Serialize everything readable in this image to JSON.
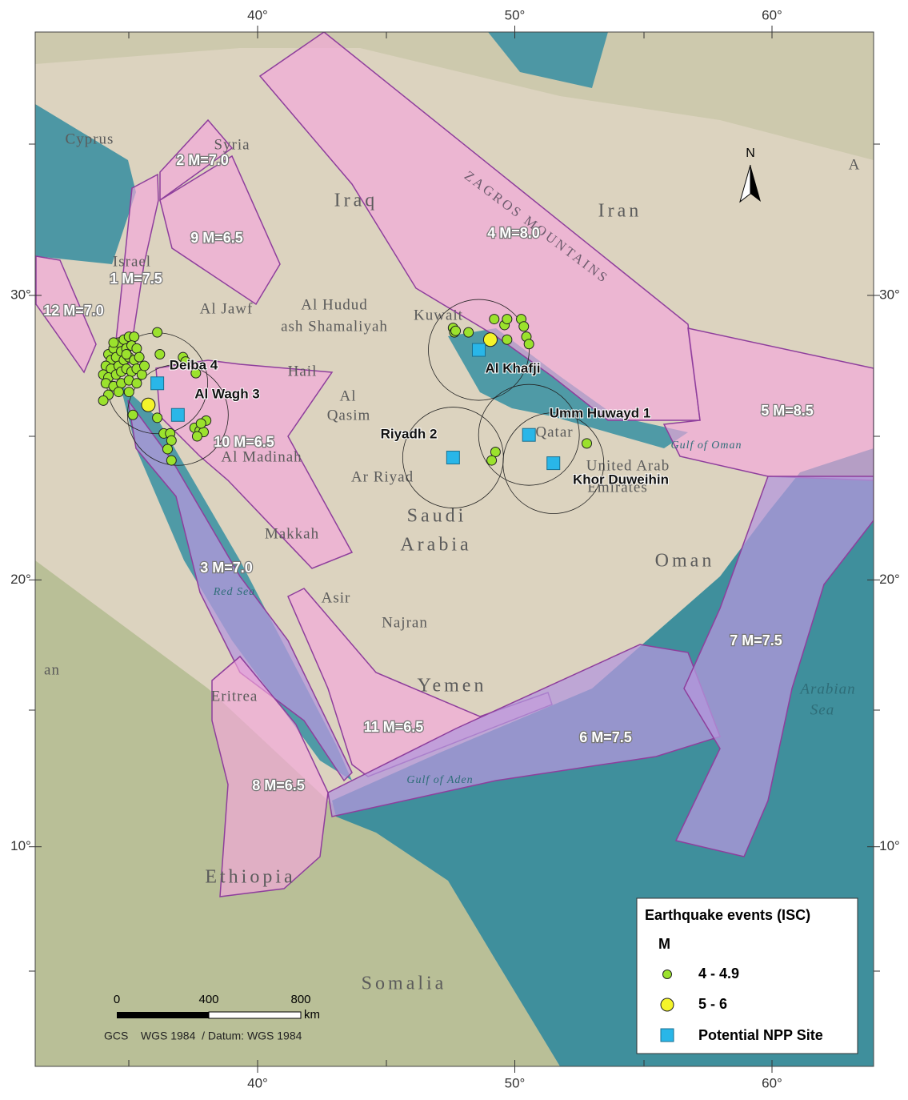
{
  "map": {
    "lon_ticks": [
      {
        "value": 40,
        "label": "40°"
      },
      {
        "value": 50,
        "label": "50°"
      },
      {
        "value": 60,
        "label": "60°"
      }
    ],
    "lat_ticks": [
      {
        "value": 30,
        "label": "30°"
      },
      {
        "value": 20,
        "label": "20°"
      },
      {
        "value": 10,
        "label": "10°"
      }
    ],
    "places": [
      "Cyprus",
      "Syria",
      "Iraq",
      "Iran",
      "Israel",
      "Al Jawf",
      "Al Hudud",
      "ash Shamaliyah",
      "Kuwait",
      "Hail",
      "Al",
      "Qasim",
      "Al Madinah",
      "Ar Riyad",
      "Saudi",
      "Arabia",
      "Makkah",
      "Asir",
      "Najran",
      "Yemen",
      "Eritrea",
      "Ethiopia",
      "Somalia",
      "Oman",
      "United Arab",
      "Emirates",
      "Qatar",
      "Arabian",
      "Sea",
      "Gulf of Oman",
      "Gulf of Aden",
      "ZAGROS MOUNTAINS",
      "Red Sea",
      "an",
      "A"
    ],
    "zones": [
      "1 M=7.5",
      "2 M=7.0",
      "3 M=7.0",
      "4 M=8.0",
      "5 M=8.5",
      "6 M=7.5",
      "7 M=7.5",
      "8 M=6.5",
      "9 M=6.5",
      "10 M=6.5",
      "11 M=6.5",
      "12 M=7.0"
    ],
    "earthquake_groups": [
      {
        "label": "4 - 4.9",
        "color": "#9be22d",
        "points": [
          [
            34.2,
            28.0
          ],
          [
            34.4,
            28.2
          ],
          [
            34.6,
            28.4
          ],
          [
            34.8,
            28.5
          ],
          [
            35.0,
            28.6
          ],
          [
            35.2,
            28.6
          ],
          [
            34.3,
            27.8
          ],
          [
            34.5,
            27.9
          ],
          [
            34.7,
            28.1
          ],
          [
            34.9,
            28.2
          ],
          [
            35.1,
            28.3
          ],
          [
            35.3,
            28.2
          ],
          [
            34.1,
            27.6
          ],
          [
            34.3,
            27.5
          ],
          [
            34.6,
            27.6
          ],
          [
            34.8,
            27.8
          ],
          [
            35.0,
            27.9
          ],
          [
            35.2,
            27.8
          ],
          [
            35.4,
            27.9
          ],
          [
            34.0,
            27.3
          ],
          [
            34.2,
            27.2
          ],
          [
            34.5,
            27.3
          ],
          [
            34.7,
            27.4
          ],
          [
            34.9,
            27.5
          ],
          [
            35.1,
            27.4
          ],
          [
            35.3,
            27.5
          ],
          [
            35.5,
            27.3
          ],
          [
            34.1,
            27.0
          ],
          [
            34.4,
            26.9
          ],
          [
            34.7,
            27.0
          ],
          [
            35.0,
            27.1
          ],
          [
            35.3,
            27.0
          ],
          [
            34.2,
            26.6
          ],
          [
            34.6,
            26.7
          ],
          [
            35.0,
            26.7
          ],
          [
            34.0,
            26.4
          ],
          [
            34.4,
            28.4
          ],
          [
            34.9,
            28.0
          ],
          [
            35.6,
            27.6
          ],
          [
            36.1,
            28.75
          ],
          [
            36.2,
            28.0
          ],
          [
            37.1,
            27.9
          ],
          [
            37.2,
            27.75
          ],
          [
            37.6,
            27.35
          ],
          [
            35.15,
            25.9
          ],
          [
            36.1,
            25.8
          ],
          [
            36.35,
            25.25
          ],
          [
            36.6,
            25.25
          ],
          [
            36.65,
            25.0
          ],
          [
            36.65,
            24.3
          ],
          [
            36.5,
            24.7
          ],
          [
            37.55,
            25.45
          ],
          [
            37.75,
            25.35
          ],
          [
            37.9,
            25.3
          ],
          [
            38.0,
            25.7
          ],
          [
            37.8,
            25.6
          ],
          [
            37.65,
            25.15
          ],
          [
            47.6,
            28.9
          ],
          [
            47.65,
            28.75
          ],
          [
            47.7,
            28.8
          ],
          [
            48.2,
            28.75
          ],
          [
            49.2,
            29.2
          ],
          [
            49.6,
            29.0
          ],
          [
            49.7,
            29.2
          ],
          [
            50.25,
            29.2
          ],
          [
            50.35,
            28.95
          ],
          [
            50.45,
            28.6
          ],
          [
            50.55,
            28.35
          ],
          [
            49.7,
            28.5
          ],
          [
            49.25,
            24.6
          ],
          [
            49.1,
            24.3
          ],
          [
            52.8,
            24.9
          ]
        ]
      },
      {
        "label": "5 - 6",
        "color": "#f4f42a",
        "points": [
          [
            49.05,
            28.5
          ],
          [
            35.75,
            26.25
          ]
        ]
      }
    ],
    "sites": {
      "label": "Potential NPP Site",
      "color": "#29b6e8",
      "items": [
        {
          "name": "Deiba 4",
          "lon": 36.1,
          "lat": 27.0
        },
        {
          "name": "Al Wagh 3",
          "lon": 36.9,
          "lat": 25.9
        },
        {
          "name": "Riyadh 2",
          "lon": 47.6,
          "lat": 24.4
        },
        {
          "name": "Al Khafji",
          "lon": 48.6,
          "lat": 28.15
        },
        {
          "name": "Umm Huwayd 1",
          "lon": 50.55,
          "lat": 25.2
        },
        {
          "name": "Khor Duweihin",
          "lon": 51.5,
          "lat": 24.2
        }
      ]
    },
    "legend": {
      "title": "Earthquake events (ISC)",
      "subtitle": "M"
    },
    "scale": {
      "ticks": [
        0,
        400,
        800
      ],
      "unit": "km"
    },
    "north": "N",
    "credit": "GCS    WGS 1984  / Datum: WGS 1984"
  }
}
